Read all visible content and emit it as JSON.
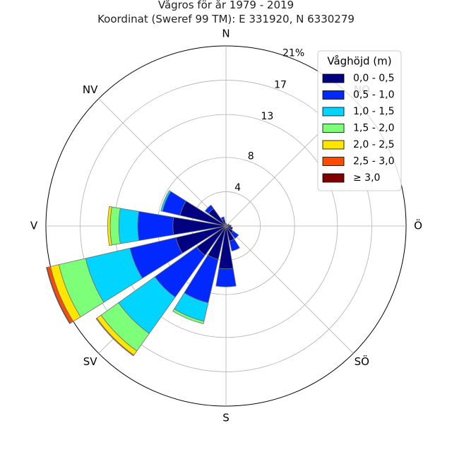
{
  "chart_data": {
    "type": "windrose",
    "title_line1": "Vågros för år 1979 - 2019",
    "title_line2": "Koordinat (Sweref 99 TM): E 331920, N 6330279",
    "directions": [
      "N",
      "NO",
      "Ö",
      "SÖ",
      "S",
      "SV",
      "V",
      "NV"
    ],
    "radial_ticks": [
      "4",
      "8",
      "13",
      "17",
      "21%"
    ],
    "radial_tick_values": [
      4,
      8,
      13,
      17,
      21
    ],
    "rmax": 21,
    "legend_title": "Våghöjd (m)",
    "bins": [
      {
        "label": "0,0 - 0,5",
        "color": "#000080"
      },
      {
        "label": "0,5 - 1,0",
        "color": "#0028ff"
      },
      {
        "label": "1,0 - 1,5",
        "color": "#00d4ff"
      },
      {
        "label": "1,5 - 2,0",
        "color": "#7dff7a"
      },
      {
        "label": "2,0 - 2,5",
        "color": "#ffe600"
      },
      {
        "label": "2,5 - 3,0",
        "color": "#ff4a00"
      },
      {
        "label": "≥ 3,0",
        "color": "#800000"
      }
    ],
    "sectors": [
      {
        "direction_deg": 0,
        "values": [
          0.3,
          0,
          0,
          0,
          0,
          0,
          0
        ]
      },
      {
        "direction_deg": 22.5,
        "values": [
          0.2,
          0,
          0,
          0,
          0,
          0,
          0
        ]
      },
      {
        "direction_deg": 45,
        "values": [
          0.2,
          0,
          0,
          0,
          0,
          0,
          0
        ]
      },
      {
        "direction_deg": 67.5,
        "values": [
          0.4,
          0,
          0,
          0,
          0,
          0,
          0
        ]
      },
      {
        "direction_deg": 90,
        "values": [
          0.6,
          0,
          0,
          0,
          0,
          0,
          0
        ]
      },
      {
        "direction_deg": 112.5,
        "values": [
          0.8,
          0,
          0,
          0,
          0,
          0,
          0
        ]
      },
      {
        "direction_deg": 135,
        "values": [
          1.0,
          0.8,
          0,
          0,
          0,
          0,
          0
        ]
      },
      {
        "direction_deg": 157.5,
        "values": [
          1.8,
          1.2,
          0,
          0,
          0,
          0,
          0
        ]
      },
      {
        "direction_deg": 180,
        "values": [
          5.0,
          2.1,
          0,
          0,
          0,
          0,
          0
        ]
      },
      {
        "direction_deg": 202.5,
        "values": [
          4.0,
          5.2,
          2.2,
          0.3,
          0,
          0,
          0
        ]
      },
      {
        "direction_deg": 225,
        "values": [
          4.2,
          6.0,
          5.2,
          2.5,
          0.6,
          0.1,
          0
        ]
      },
      {
        "direction_deg": 247.5,
        "values": [
          6.0,
          5.5,
          5.3,
          3.2,
          1.0,
          0.4,
          0.1
        ]
      },
      {
        "direction_deg": 270,
        "values": [
          6.2,
          4.1,
          2.2,
          1.0,
          0.3,
          0,
          0
        ]
      },
      {
        "direction_deg": 292.5,
        "values": [
          5.5,
          2.1,
          0.2,
          0,
          0,
          0,
          0
        ]
      },
      {
        "direction_deg": 315,
        "values": [
          2.5,
          0.5,
          0,
          0,
          0,
          0,
          0
        ]
      },
      {
        "direction_deg": 337.5,
        "values": [
          0.8,
          0.3,
          0,
          0,
          0,
          0,
          0
        ]
      }
    ]
  }
}
